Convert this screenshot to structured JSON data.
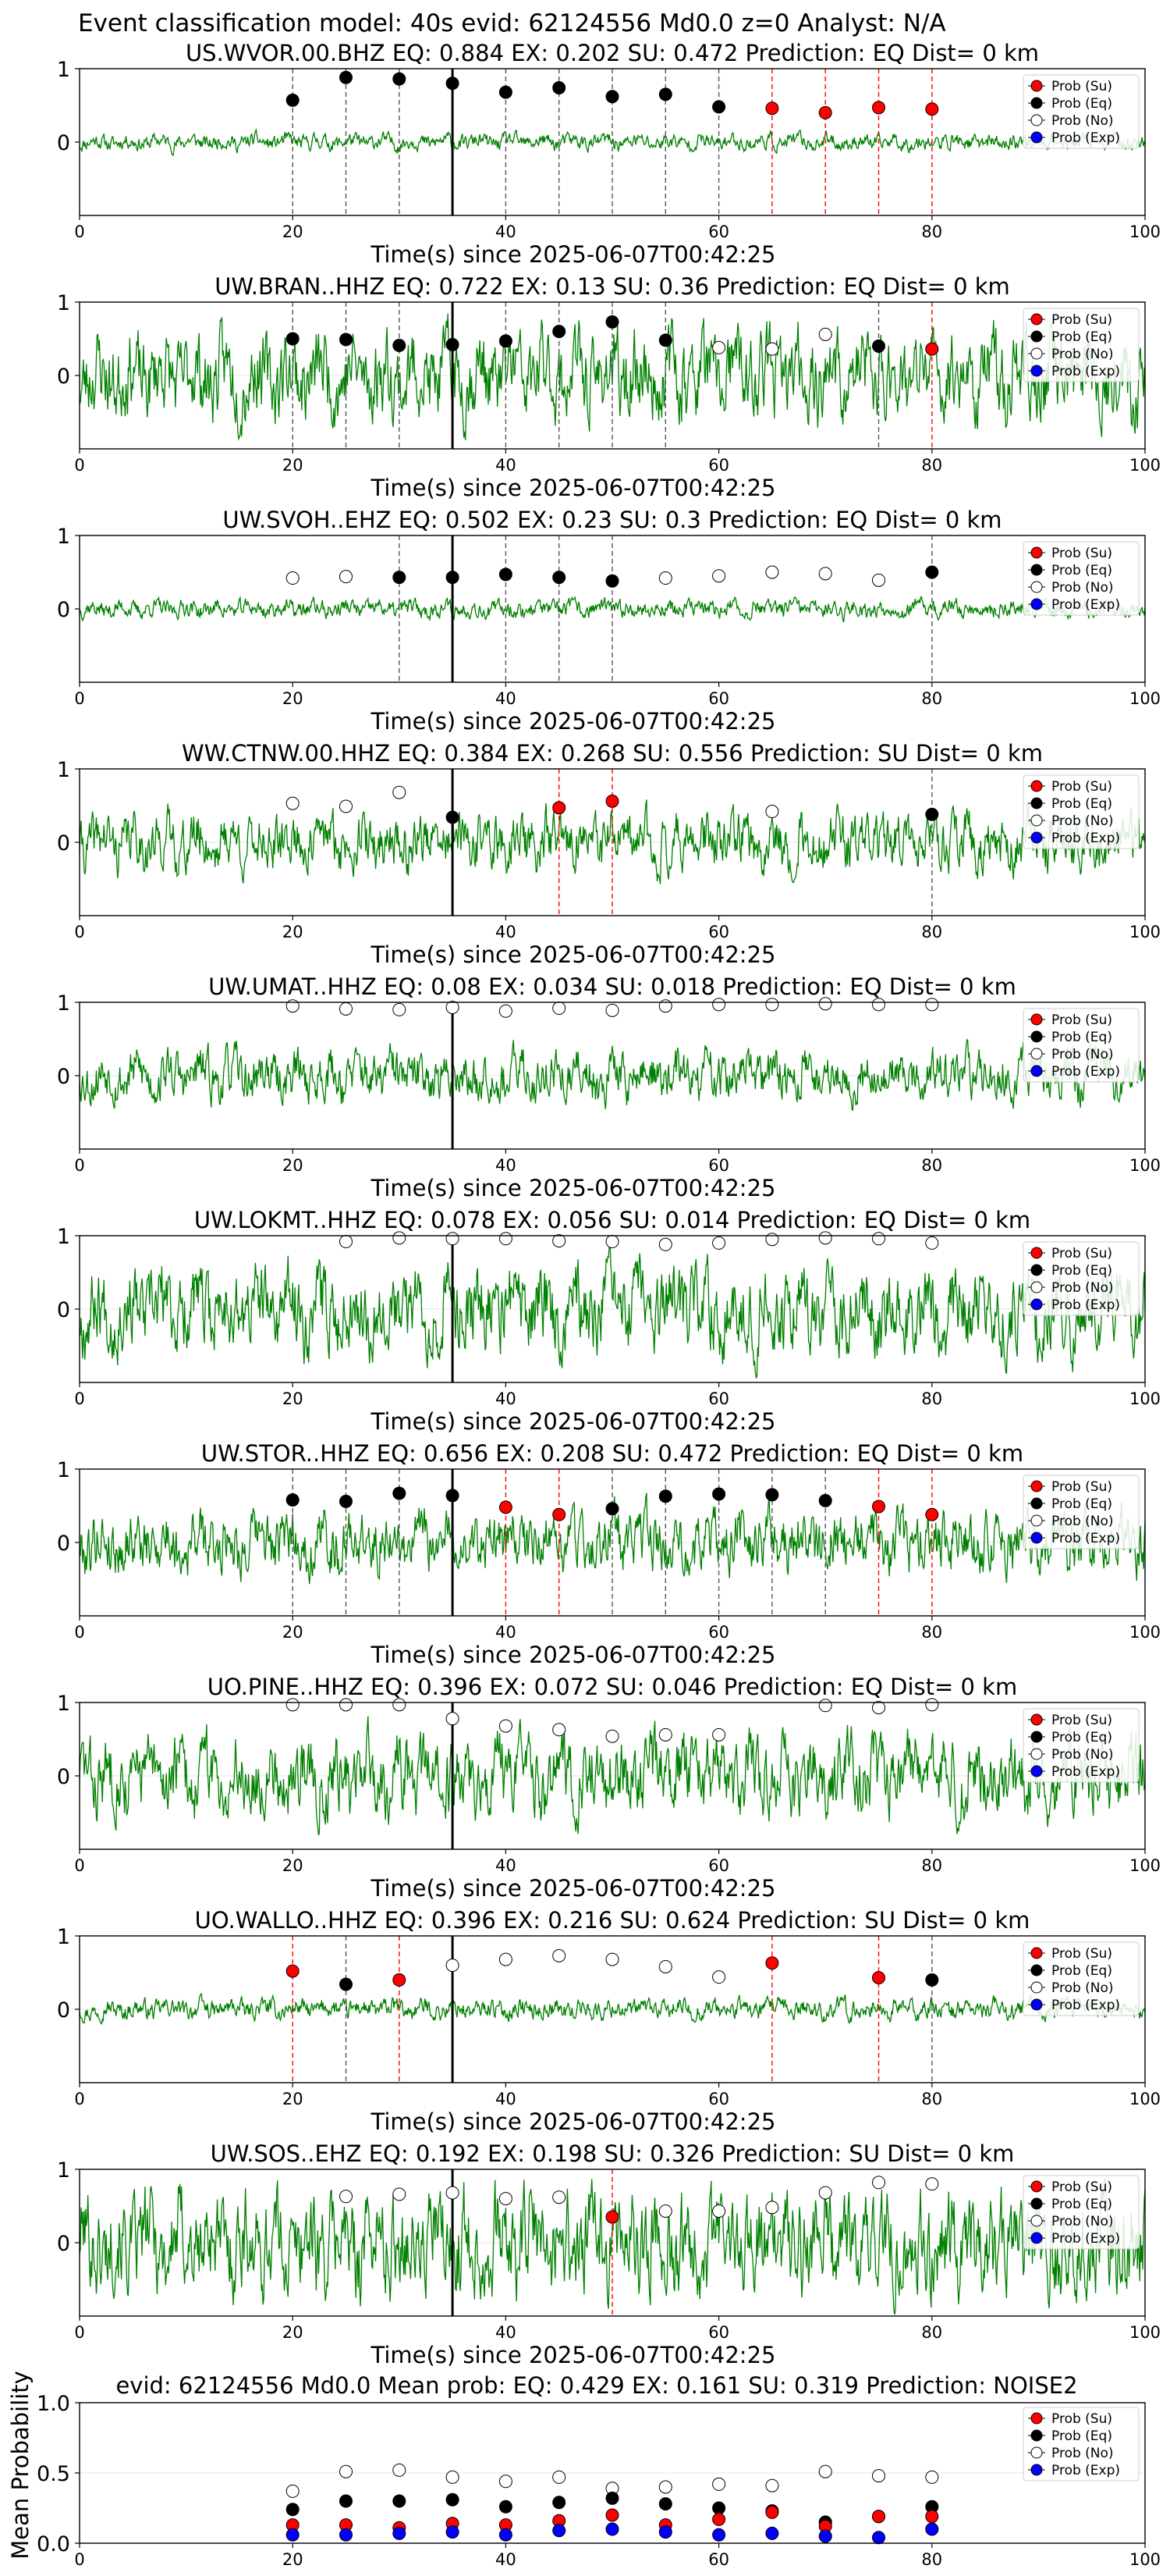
{
  "figure": {
    "suptitle": "Event classification model: 40s evid: 62124556 Md0.0 z=0 Analyst: N/A"
  },
  "legend_labels": [
    "Prob (Su)",
    "Prob (Eq)",
    "Prob (No)",
    "Prob (Exp)"
  ],
  "colors": {
    "trace": "#008000",
    "su": "#ff0000",
    "eq": "#000000",
    "no": "#ffffff",
    "exp": "#0000ff",
    "su_line": "#ff0000",
    "eq_line": "#555555",
    "pick_line": "#000000"
  },
  "chart_data": [
    {
      "type": "line",
      "title": "US.WVOR.00.BHZ   EQ: 0.884  EX: 0.202  SU: 0.472   Prediction: EQ    Dist= 0 km",
      "xlabel": "Time(s) since 2025-06-07T00:42:25",
      "xlim": [
        0,
        100
      ],
      "ylim": [
        -1,
        1
      ],
      "xticks": [
        0,
        20,
        40,
        60,
        80,
        100
      ],
      "yticks": [
        0,
        1
      ],
      "pick_time": 35,
      "noise": 0.08,
      "seed": 11,
      "points": [
        {
          "x": 20,
          "y": 0.57,
          "c": "eq"
        },
        {
          "x": 25,
          "y": 0.88,
          "c": "eq"
        },
        {
          "x": 30,
          "y": 0.86,
          "c": "eq"
        },
        {
          "x": 35,
          "y": 0.8,
          "c": "eq"
        },
        {
          "x": 40,
          "y": 0.68,
          "c": "eq"
        },
        {
          "x": 45,
          "y": 0.74,
          "c": "eq"
        },
        {
          "x": 50,
          "y": 0.62,
          "c": "eq"
        },
        {
          "x": 55,
          "y": 0.65,
          "c": "eq"
        },
        {
          "x": 60,
          "y": 0.48,
          "c": "eq"
        },
        {
          "x": 65,
          "y": 0.46,
          "c": "su"
        },
        {
          "x": 70,
          "y": 0.4,
          "c": "su"
        },
        {
          "x": 75,
          "y": 0.47,
          "c": "su"
        },
        {
          "x": 80,
          "y": 0.45,
          "c": "su"
        }
      ]
    },
    {
      "type": "line",
      "title": "UW.BRAN..HHZ   EQ: 0.722  EX: 0.13  SU: 0.36   Prediction: EQ    Dist= 0 km",
      "xlabel": "Time(s) since 2025-06-07T00:42:25",
      "xlim": [
        0,
        100
      ],
      "ylim": [
        -1,
        1
      ],
      "xticks": [
        0,
        20,
        40,
        60,
        80,
        100
      ],
      "yticks": [
        0,
        1
      ],
      "pick_time": 35,
      "noise": 0.42,
      "seed": 23,
      "points": [
        {
          "x": 20,
          "y": 0.5,
          "c": "eq"
        },
        {
          "x": 25,
          "y": 0.49,
          "c": "eq"
        },
        {
          "x": 30,
          "y": 0.41,
          "c": "eq"
        },
        {
          "x": 35,
          "y": 0.42,
          "c": "eq"
        },
        {
          "x": 40,
          "y": 0.47,
          "c": "eq"
        },
        {
          "x": 45,
          "y": 0.6,
          "c": "eq"
        },
        {
          "x": 50,
          "y": 0.73,
          "c": "eq"
        },
        {
          "x": 55,
          "y": 0.48,
          "c": "eq"
        },
        {
          "x": 60,
          "y": 0.38,
          "c": "no"
        },
        {
          "x": 65,
          "y": 0.36,
          "c": "no"
        },
        {
          "x": 70,
          "y": 0.56,
          "c": "no"
        },
        {
          "x": 75,
          "y": 0.4,
          "c": "eq"
        },
        {
          "x": 80,
          "y": 0.36,
          "c": "su"
        }
      ]
    },
    {
      "type": "line",
      "title": "UW.SVOH..EHZ   EQ: 0.502  EX: 0.23  SU: 0.3   Prediction: EQ    Dist= 0 km",
      "xlabel": "Time(s) since 2025-06-07T00:42:25",
      "xlim": [
        0,
        100
      ],
      "ylim": [
        -1,
        1
      ],
      "xticks": [
        0,
        20,
        40,
        60,
        80,
        100
      ],
      "yticks": [
        0,
        1
      ],
      "pick_time": 35,
      "noise": 0.09,
      "seed": 37,
      "points": [
        {
          "x": 20,
          "y": 0.42,
          "c": "no"
        },
        {
          "x": 25,
          "y": 0.44,
          "c": "no"
        },
        {
          "x": 30,
          "y": 0.43,
          "c": "eq"
        },
        {
          "x": 35,
          "y": 0.43,
          "c": "eq"
        },
        {
          "x": 40,
          "y": 0.47,
          "c": "eq"
        },
        {
          "x": 45,
          "y": 0.43,
          "c": "eq"
        },
        {
          "x": 50,
          "y": 0.38,
          "c": "eq"
        },
        {
          "x": 55,
          "y": 0.42,
          "c": "no"
        },
        {
          "x": 60,
          "y": 0.45,
          "c": "no"
        },
        {
          "x": 65,
          "y": 0.5,
          "c": "no"
        },
        {
          "x": 70,
          "y": 0.48,
          "c": "no"
        },
        {
          "x": 75,
          "y": 0.39,
          "c": "no"
        },
        {
          "x": 80,
          "y": 0.5,
          "c": "eq"
        }
      ]
    },
    {
      "type": "line",
      "title": "WW.CTNW.00.HHZ   EQ: 0.384  EX: 0.268  SU: 0.556   Prediction: SU    Dist= 0 km",
      "xlabel": "Time(s) since 2025-06-07T00:42:25",
      "xlim": [
        0,
        100
      ],
      "ylim": [
        -1,
        1
      ],
      "xticks": [
        0,
        20,
        40,
        60,
        80,
        100
      ],
      "yticks": [
        0,
        1
      ],
      "pick_time": 35,
      "noise": 0.28,
      "seed": 41,
      "points": [
        {
          "x": 20,
          "y": 0.53,
          "c": "no"
        },
        {
          "x": 25,
          "y": 0.49,
          "c": "no"
        },
        {
          "x": 30,
          "y": 0.68,
          "c": "no"
        },
        {
          "x": 35,
          "y": 0.34,
          "c": "eq"
        },
        {
          "x": 45,
          "y": 0.47,
          "c": "su"
        },
        {
          "x": 50,
          "y": 0.56,
          "c": "su"
        },
        {
          "x": 65,
          "y": 0.42,
          "c": "no"
        },
        {
          "x": 80,
          "y": 0.38,
          "c": "eq"
        }
      ]
    },
    {
      "type": "line",
      "title": "UW.UMAT..HHZ   EQ: 0.08  EX: 0.034  SU: 0.018   Prediction: EQ    Dist= 0 km",
      "xlabel": "Time(s) since 2025-06-07T00:42:25",
      "xlim": [
        0,
        100
      ],
      "ylim": [
        -1,
        1
      ],
      "xticks": [
        0,
        20,
        40,
        60,
        80,
        100
      ],
      "yticks": [
        0,
        1
      ],
      "pick_time": 35,
      "noise": 0.25,
      "seed": 53,
      "points": [
        {
          "x": 20,
          "y": 0.95,
          "c": "no"
        },
        {
          "x": 25,
          "y": 0.91,
          "c": "no"
        },
        {
          "x": 30,
          "y": 0.9,
          "c": "no"
        },
        {
          "x": 35,
          "y": 0.93,
          "c": "no"
        },
        {
          "x": 40,
          "y": 0.88,
          "c": "no"
        },
        {
          "x": 45,
          "y": 0.92,
          "c": "no"
        },
        {
          "x": 50,
          "y": 0.89,
          "c": "no"
        },
        {
          "x": 55,
          "y": 0.95,
          "c": "no"
        },
        {
          "x": 60,
          "y": 0.97,
          "c": "no"
        },
        {
          "x": 65,
          "y": 0.97,
          "c": "no"
        },
        {
          "x": 70,
          "y": 0.98,
          "c": "no"
        },
        {
          "x": 75,
          "y": 0.97,
          "c": "no"
        },
        {
          "x": 80,
          "y": 0.97,
          "c": "no"
        }
      ]
    },
    {
      "type": "line",
      "title": "UW.LOKMT..HHZ   EQ: 0.078  EX: 0.056  SU: 0.014   Prediction: EQ    Dist= 0 km",
      "xlabel": "Time(s) since 2025-06-07T00:42:25",
      "xlim": [
        0,
        100
      ],
      "ylim": [
        -1,
        1
      ],
      "xticks": [
        0,
        20,
        40,
        60,
        80,
        100
      ],
      "yticks": [
        0,
        1
      ],
      "pick_time": 35,
      "noise": 0.4,
      "seed": 67,
      "points": [
        {
          "x": 25,
          "y": 0.92,
          "c": "no"
        },
        {
          "x": 30,
          "y": 0.97,
          "c": "no"
        },
        {
          "x": 35,
          "y": 0.96,
          "c": "no"
        },
        {
          "x": 40,
          "y": 0.96,
          "c": "no"
        },
        {
          "x": 45,
          "y": 0.93,
          "c": "no"
        },
        {
          "x": 50,
          "y": 0.92,
          "c": "no"
        },
        {
          "x": 55,
          "y": 0.88,
          "c": "no"
        },
        {
          "x": 60,
          "y": 0.9,
          "c": "no"
        },
        {
          "x": 65,
          "y": 0.95,
          "c": "no"
        },
        {
          "x": 70,
          "y": 0.97,
          "c": "no"
        },
        {
          "x": 75,
          "y": 0.96,
          "c": "no"
        },
        {
          "x": 80,
          "y": 0.9,
          "c": "no"
        }
      ]
    },
    {
      "type": "line",
      "title": "UW.STOR..HHZ   EQ: 0.656  EX: 0.208  SU: 0.472   Prediction: EQ    Dist= 0 km",
      "xlabel": "Time(s) since 2025-06-07T00:42:25",
      "xlim": [
        0,
        100
      ],
      "ylim": [
        -1,
        1
      ],
      "xticks": [
        0,
        20,
        40,
        60,
        80,
        100
      ],
      "yticks": [
        0,
        1
      ],
      "pick_time": 35,
      "noise": 0.3,
      "seed": 79,
      "points": [
        {
          "x": 20,
          "y": 0.58,
          "c": "eq"
        },
        {
          "x": 25,
          "y": 0.56,
          "c": "eq"
        },
        {
          "x": 30,
          "y": 0.67,
          "c": "eq"
        },
        {
          "x": 35,
          "y": 0.64,
          "c": "eq"
        },
        {
          "x": 40,
          "y": 0.48,
          "c": "su"
        },
        {
          "x": 45,
          "y": 0.38,
          "c": "su"
        },
        {
          "x": 50,
          "y": 0.46,
          "c": "eq"
        },
        {
          "x": 55,
          "y": 0.63,
          "c": "eq"
        },
        {
          "x": 60,
          "y": 0.66,
          "c": "eq"
        },
        {
          "x": 65,
          "y": 0.65,
          "c": "eq"
        },
        {
          "x": 70,
          "y": 0.57,
          "c": "eq"
        },
        {
          "x": 75,
          "y": 0.49,
          "c": "su"
        },
        {
          "x": 80,
          "y": 0.38,
          "c": "su"
        }
      ]
    },
    {
      "type": "line",
      "title": "UO.PINE..HHZ   EQ: 0.396  EX: 0.072  SU: 0.046   Prediction: EQ    Dist= 0 km",
      "xlabel": "Time(s) since 2025-06-07T00:42:25",
      "xlim": [
        0,
        100
      ],
      "ylim": [
        -1,
        1
      ],
      "xticks": [
        0,
        20,
        40,
        60,
        80,
        100
      ],
      "yticks": [
        0,
        1
      ],
      "pick_time": 35,
      "noise": 0.38,
      "seed": 83,
      "points": [
        {
          "x": 20,
          "y": 0.97,
          "c": "no"
        },
        {
          "x": 25,
          "y": 0.97,
          "c": "no"
        },
        {
          "x": 30,
          "y": 0.97,
          "c": "no"
        },
        {
          "x": 35,
          "y": 0.78,
          "c": "no"
        },
        {
          "x": 40,
          "y": 0.68,
          "c": "no"
        },
        {
          "x": 45,
          "y": 0.63,
          "c": "no"
        },
        {
          "x": 50,
          "y": 0.54,
          "c": "no"
        },
        {
          "x": 55,
          "y": 0.56,
          "c": "no"
        },
        {
          "x": 60,
          "y": 0.56,
          "c": "no"
        },
        {
          "x": 70,
          "y": 0.96,
          "c": "no"
        },
        {
          "x": 75,
          "y": 0.93,
          "c": "no"
        },
        {
          "x": 80,
          "y": 0.97,
          "c": "no"
        }
      ]
    },
    {
      "type": "line",
      "title": "UO.WALLO..HHZ   EQ: 0.396  EX: 0.216  SU: 0.624   Prediction: SU    Dist= 0 km",
      "xlabel": "Time(s) since 2025-06-07T00:42:25",
      "xlim": [
        0,
        100
      ],
      "ylim": [
        -1,
        1
      ],
      "xticks": [
        0,
        20,
        40,
        60,
        80,
        100
      ],
      "yticks": [
        0,
        1
      ],
      "pick_time": 35,
      "noise": 0.1,
      "seed": 97,
      "points": [
        {
          "x": 20,
          "y": 0.52,
          "c": "su"
        },
        {
          "x": 25,
          "y": 0.34,
          "c": "eq"
        },
        {
          "x": 30,
          "y": 0.4,
          "c": "su"
        },
        {
          "x": 35,
          "y": 0.6,
          "c": "no"
        },
        {
          "x": 40,
          "y": 0.68,
          "c": "no"
        },
        {
          "x": 45,
          "y": 0.73,
          "c": "no"
        },
        {
          "x": 50,
          "y": 0.68,
          "c": "no"
        },
        {
          "x": 55,
          "y": 0.58,
          "c": "no"
        },
        {
          "x": 60,
          "y": 0.44,
          "c": "no"
        },
        {
          "x": 65,
          "y": 0.63,
          "c": "su"
        },
        {
          "x": 75,
          "y": 0.43,
          "c": "su"
        },
        {
          "x": 80,
          "y": 0.4,
          "c": "eq"
        }
      ]
    },
    {
      "type": "line",
      "title": "UW.SOS..EHZ   EQ: 0.192  EX: 0.198  SU: 0.326   Prediction: SU    Dist= 0 km",
      "xlabel": "Time(s) since 2025-06-07T00:42:25",
      "xlim": [
        0,
        100
      ],
      "ylim": [
        -1,
        1
      ],
      "xticks": [
        0,
        20,
        40,
        60,
        80,
        100
      ],
      "yticks": [
        0,
        1
      ],
      "pick_time": 35,
      "noise": 0.5,
      "seed": 101,
      "points": [
        {
          "x": 25,
          "y": 0.63,
          "c": "no"
        },
        {
          "x": 30,
          "y": 0.66,
          "c": "no"
        },
        {
          "x": 35,
          "y": 0.68,
          "c": "no"
        },
        {
          "x": 40,
          "y": 0.6,
          "c": "no"
        },
        {
          "x": 45,
          "y": 0.62,
          "c": "no"
        },
        {
          "x": 50,
          "y": 0.35,
          "c": "su"
        },
        {
          "x": 55,
          "y": 0.43,
          "c": "no"
        },
        {
          "x": 60,
          "y": 0.43,
          "c": "no"
        },
        {
          "x": 65,
          "y": 0.48,
          "c": "no"
        },
        {
          "x": 70,
          "y": 0.68,
          "c": "no"
        },
        {
          "x": 75,
          "y": 0.82,
          "c": "no"
        },
        {
          "x": 80,
          "y": 0.8,
          "c": "no"
        }
      ]
    },
    {
      "type": "scatter",
      "title": "evid: 62124556  Md0.0   Mean prob:   EQ: 0.429  EX: 0.161  SU: 0.319   Prediction: NOISE2",
      "ylabel": "Mean Probability",
      "xlim": [
        0,
        100
      ],
      "ylim": [
        0,
        1
      ],
      "xticks": [
        0,
        20,
        40,
        60,
        80,
        100
      ],
      "yticks": [
        0.0,
        0.5,
        1.0
      ],
      "ytick_labels": [
        "0.0",
        "0.5",
        "1.0"
      ],
      "x": [
        20,
        25,
        30,
        35,
        40,
        45,
        50,
        55,
        60,
        65,
        70,
        75,
        80
      ],
      "series": [
        {
          "key": "no",
          "values": [
            0.37,
            0.51,
            0.52,
            0.47,
            0.44,
            0.47,
            0.39,
            0.4,
            0.42,
            0.41,
            0.51,
            0.48,
            0.47
          ]
        },
        {
          "key": "eq",
          "values": [
            0.24,
            0.3,
            0.3,
            0.31,
            0.26,
            0.29,
            0.32,
            0.28,
            0.25,
            0.23,
            0.15,
            0.19,
            0.26
          ]
        },
        {
          "key": "su",
          "values": [
            0.13,
            0.13,
            0.11,
            0.14,
            0.13,
            0.16,
            0.2,
            0.13,
            0.17,
            0.22,
            0.12,
            0.19,
            0.19
          ]
        },
        {
          "key": "exp",
          "values": [
            0.06,
            0.06,
            0.07,
            0.08,
            0.06,
            0.09,
            0.1,
            0.08,
            0.06,
            0.07,
            0.05,
            0.04,
            0.1
          ]
        }
      ]
    }
  ]
}
